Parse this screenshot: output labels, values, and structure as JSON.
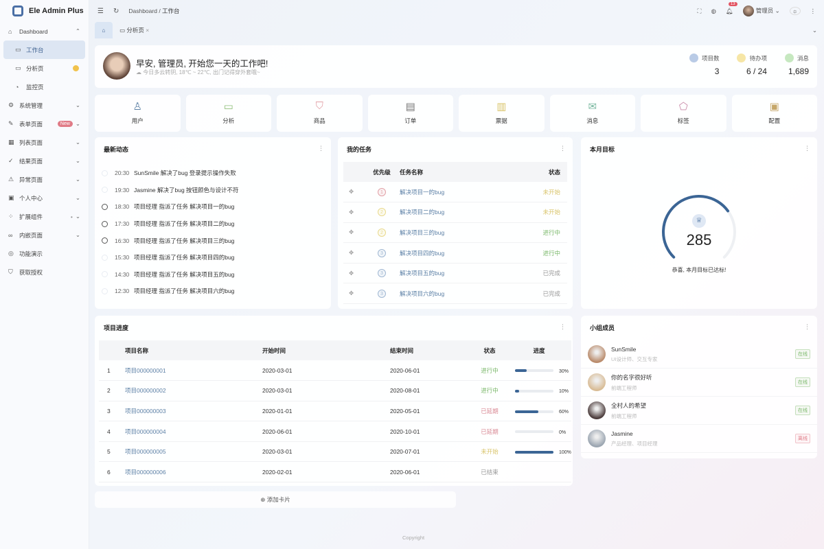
{
  "app": {
    "title": "Ele Admin Plus"
  },
  "sidebar": {
    "items": [
      {
        "label": "Dashboard",
        "icon": "home-icon",
        "expanded": true
      },
      {
        "label": "工作台",
        "icon": "monitor-icon",
        "sub": true,
        "active": true
      },
      {
        "label": "分析页",
        "icon": "chart-icon",
        "sub": true,
        "badge": "1"
      },
      {
        "label": "监控页",
        "icon": "gauge-icon",
        "sub": true
      },
      {
        "label": "系统管理",
        "icon": "gear-icon"
      },
      {
        "label": "表单页面",
        "icon": "edit-icon",
        "tag": "New"
      },
      {
        "label": "列表页面",
        "icon": "table-icon"
      },
      {
        "label": "结果页面",
        "icon": "check-circle-icon"
      },
      {
        "label": "异常页面",
        "icon": "warning-icon"
      },
      {
        "label": "个人中心",
        "icon": "user-card-icon"
      },
      {
        "label": "扩展组件",
        "icon": "components-icon",
        "dot": true
      },
      {
        "label": "内嵌页面",
        "icon": "link-icon"
      },
      {
        "label": "功能演示",
        "icon": "compass-icon",
        "nochevron": true
      },
      {
        "label": "获取授权",
        "icon": "shield-check-icon",
        "nochevron": true
      }
    ]
  },
  "header": {
    "breadcrumb": [
      "Dashboard",
      "工作台"
    ],
    "notifications": "13",
    "user": "管理员"
  },
  "tabs": [
    {
      "label": "分析页"
    }
  ],
  "welcome": {
    "title": "早安, 管理员, 开始您一天的工作吧!",
    "subtitle": "今日多云转阴, 18℃ ~ 22℃, 出门记得穿外套哦~",
    "stats": [
      {
        "label": "项目数",
        "value": "3",
        "color": "#b9cbe6"
      },
      {
        "label": "待办项",
        "value": "6 / 24",
        "color": "#f6e6a6"
      },
      {
        "label": "消息",
        "value": "1,689",
        "color": "#c6e8c0"
      }
    ]
  },
  "quick_links": [
    {
      "label": "用户",
      "icon": "user-icon",
      "color": "#5b7fa5",
      "glyph": "♙"
    },
    {
      "label": "分析",
      "icon": "presentation-icon",
      "color": "#8fbf7a",
      "glyph": "▭"
    },
    {
      "label": "商品",
      "icon": "shopping-bag-icon",
      "color": "#e2a0a6",
      "glyph": "⛉"
    },
    {
      "label": "订单",
      "icon": "document-icon",
      "color": "#777",
      "glyph": "▤"
    },
    {
      "label": "票据",
      "icon": "receipt-icon",
      "color": "#d9c46a",
      "glyph": "▥"
    },
    {
      "label": "消息",
      "icon": "mail-icon",
      "color": "#7ab8a0",
      "glyph": "✉"
    },
    {
      "label": "标签",
      "icon": "tag-icon",
      "color": "#c98aa8",
      "glyph": "⬠"
    },
    {
      "label": "配置",
      "icon": "config-icon",
      "color": "#c6a76a",
      "glyph": "▣"
    }
  ],
  "activity": {
    "title": "最新动态",
    "items": [
      {
        "time": "20:30",
        "text": "SunSmile 解决了bug 登录提示操作失败"
      },
      {
        "time": "19:30",
        "text": "Jasmine 解决了bug 按钮颜色与设计不符"
      },
      {
        "time": "18:30",
        "text": "项目经理 指派了任务 解决项目一的bug"
      },
      {
        "time": "17:30",
        "text": "项目经理 指派了任务 解决项目二的bug"
      },
      {
        "time": "16:30",
        "text": "项目经理 指派了任务 解决项目三的bug"
      },
      {
        "time": "15:30",
        "text": "项目经理 指派了任务 解决项目四的bug"
      },
      {
        "time": "14:30",
        "text": "项目经理 指派了任务 解决项目五的bug"
      },
      {
        "time": "12:30",
        "text": "项目经理 指派了任务 解决项目六的bug"
      }
    ]
  },
  "tasks": {
    "title": "我的任务",
    "columns": [
      "优先级",
      "任务名称",
      "状态"
    ],
    "rows": [
      {
        "priority": "1",
        "name": "解决项目一的bug",
        "status": "未开始",
        "pcolor": "#e2a0a6",
        "scolor": "#d9c46a"
      },
      {
        "priority": "2",
        "name": "解决项目二的bug",
        "status": "未开始",
        "pcolor": "#e9d98a",
        "scolor": "#d9c46a"
      },
      {
        "priority": "2",
        "name": "解决项目三的bug",
        "status": "进行中",
        "pcolor": "#e9d98a",
        "scolor": "#7ab86a"
      },
      {
        "priority": "3",
        "name": "解决项目四的bug",
        "status": "进行中",
        "pcolor": "#9fb7d2",
        "scolor": "#7ab86a"
      },
      {
        "priority": "3",
        "name": "解决项目五的bug",
        "status": "已完成",
        "pcolor": "#9fb7d2",
        "scolor": "#999"
      },
      {
        "priority": "3",
        "name": "解决项目六的bug",
        "status": "已完成",
        "pcolor": "#9fb7d2",
        "scolor": "#999"
      }
    ]
  },
  "goal": {
    "title": "本月目标",
    "value": "285",
    "message": "恭喜, 本月目标已达标!",
    "progress": 0.7,
    "icon": "trophy-icon"
  },
  "projects": {
    "title": "项目进度",
    "columns": [
      "项目名称",
      "开始时间",
      "结束时间",
      "状态",
      "进度"
    ],
    "rows": [
      {
        "no": "1",
        "name": "项目000000001",
        "start": "2020-03-01",
        "end": "2020-06-01",
        "status": "进行中",
        "scolor": "#7ab86a",
        "progress": 30
      },
      {
        "no": "2",
        "name": "项目000000002",
        "start": "2020-03-01",
        "end": "2020-08-01",
        "status": "进行中",
        "scolor": "#7ab86a",
        "progress": 10
      },
      {
        "no": "3",
        "name": "项目000000003",
        "start": "2020-01-01",
        "end": "2020-05-01",
        "status": "已延期",
        "scolor": "#d98a95",
        "progress": 60
      },
      {
        "no": "4",
        "name": "项目000000004",
        "start": "2020-06-01",
        "end": "2020-10-01",
        "status": "已延期",
        "scolor": "#d98a95",
        "progress": 0
      },
      {
        "no": "5",
        "name": "项目000000005",
        "start": "2020-03-01",
        "end": "2020-07-01",
        "status": "未开始",
        "scolor": "#d9c46a",
        "progress": 100
      },
      {
        "no": "6",
        "name": "项目000000006",
        "start": "2020-02-01",
        "end": "2020-06-01",
        "status": "已结束",
        "scolor": "#999",
        "progress": null
      }
    ]
  },
  "members": {
    "title": "小组成员",
    "items": [
      {
        "name": "SunSmile",
        "desc": "UI设计师、交互专家",
        "status": "在线",
        "color": "#7ab86a",
        "avatar": "#b98a6a"
      },
      {
        "name": "你的名字很好听",
        "desc": "前端工程师",
        "status": "在线",
        "color": "#7ab86a",
        "avatar": "#d8bb94"
      },
      {
        "name": "全村人的希望",
        "desc": "前端工程师",
        "status": "在线",
        "color": "#7ab86a",
        "avatar": "#4a3a3a"
      },
      {
        "name": "Jasmine",
        "desc": "产品经理、项目经理",
        "status": "离线",
        "color": "#e07b87",
        "avatar": "#9aa4b0"
      }
    ]
  },
  "footer": {
    "add_card": "添加卡片",
    "copyright": "Copyright"
  }
}
